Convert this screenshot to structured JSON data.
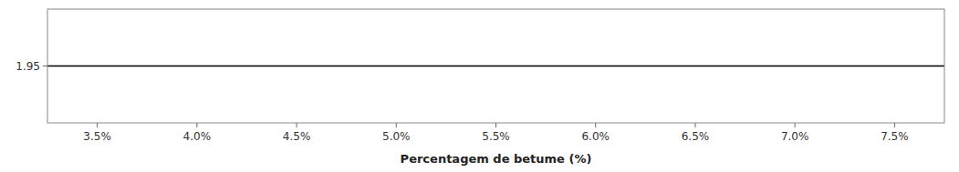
{
  "chart_data": {
    "type": "hline",
    "xlabel": "Percentagem de betume (%)",
    "values": [
      1.95
    ],
    "color": "#000000",
    "xlim": [
      3.25,
      7.75
    ],
    "xticks": [
      {
        "value": 3.5,
        "label": "3.5%"
      },
      {
        "value": 4.0,
        "label": "4.0%"
      },
      {
        "value": 4.5,
        "label": "4.5%"
      },
      {
        "value": 5.0,
        "label": "5.0%"
      },
      {
        "value": 5.5,
        "label": "5.5%"
      },
      {
        "value": 6.0,
        "label": "6.0%"
      },
      {
        "value": 6.5,
        "label": "6.5%"
      },
      {
        "value": 7.0,
        "label": "7.0%"
      },
      {
        "value": 7.5,
        "label": "7.5%"
      }
    ],
    "ylim": [
      1.93,
      1.97
    ],
    "yticks": [
      1.95
    ]
  }
}
